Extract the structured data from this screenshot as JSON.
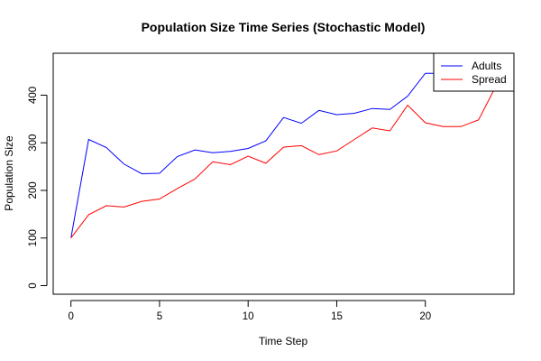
{
  "chart_data": {
    "type": "line",
    "title": "Population Size Time Series (Stochastic Model)",
    "xlabel": "Time Step",
    "ylabel": "Population Size",
    "xlim": [
      -1,
      25
    ],
    "ylim": [
      -18,
      488
    ],
    "x_ticks": [
      0,
      5,
      10,
      15,
      20
    ],
    "y_ticks": [
      0,
      100,
      200,
      300,
      400
    ],
    "grid": false,
    "legend_position": "top-right",
    "x": [
      0,
      1,
      2,
      3,
      4,
      5,
      6,
      7,
      8,
      9,
      10,
      11,
      12,
      13,
      14,
      15,
      16,
      17,
      18,
      19,
      20,
      21,
      22,
      23,
      24
    ],
    "series": [
      {
        "name": "Adults",
        "color": "#0000ff",
        "values": [
          100,
          307,
          290,
          255,
          235,
          236,
          271,
          285,
          279,
          282,
          288,
          304,
          353,
          341,
          368,
          359,
          362,
          372,
          370,
          398,
          446,
          446,
          436,
          431,
          434
        ]
      },
      {
        "name": "Spread",
        "color": "#ff0000",
        "values": [
          100,
          149,
          168,
          165,
          177,
          182,
          204,
          224,
          260,
          254,
          272,
          257,
          291,
          294,
          275,
          283,
          307,
          331,
          325,
          379,
          342,
          334,
          334,
          348,
          420
        ]
      }
    ]
  }
}
